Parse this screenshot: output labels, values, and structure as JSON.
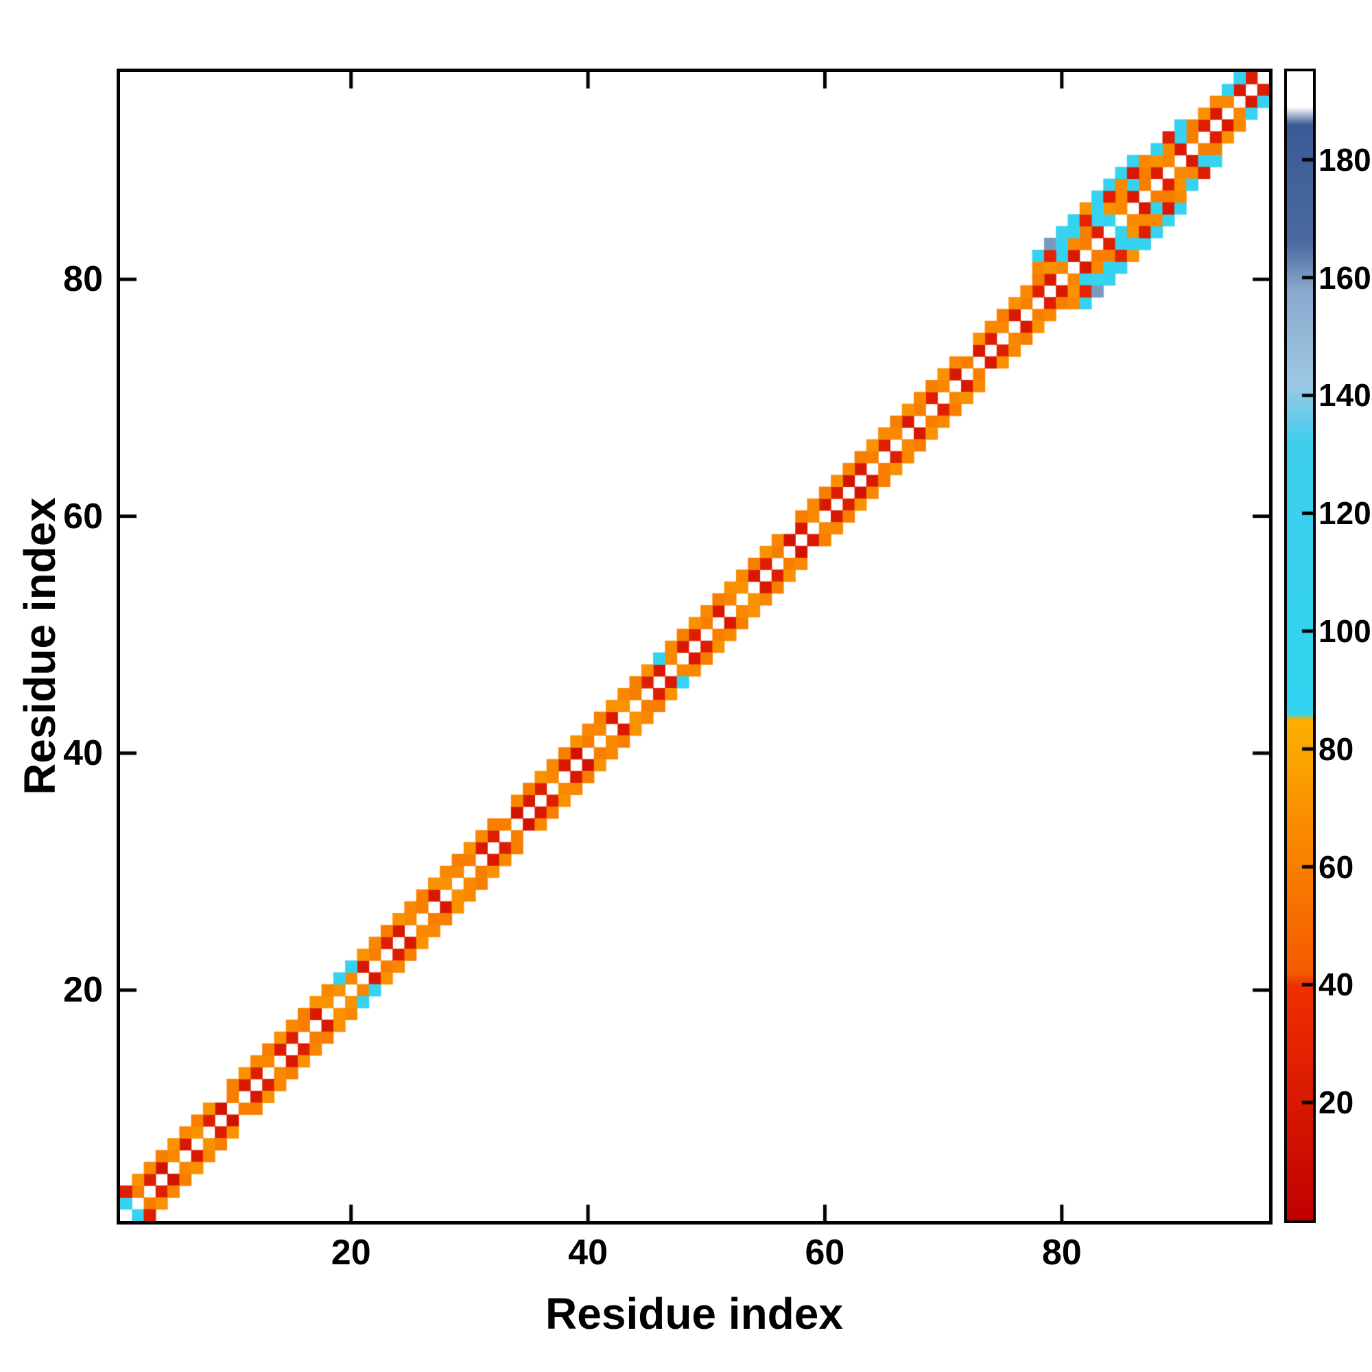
{
  "figure": {
    "background": "#ffffff",
    "axis_color": "#000000"
  },
  "chart_data": {
    "type": "heatmap",
    "title": "",
    "xlabel": "Residue index",
    "ylabel": "Residue index",
    "n_residues": 97,
    "xlim": [
      0.5,
      97.5
    ],
    "ylim": [
      0.5,
      97.5
    ],
    "xticks": [
      20,
      40,
      60,
      80
    ],
    "yticks": [
      20,
      40,
      60,
      80
    ],
    "grid": false,
    "legend": "none",
    "symmetric": true,
    "diagonal_empty": true,
    "colorbar": {
      "min": 0,
      "max": 195,
      "ticks": [
        20,
        40,
        60,
        80,
        100,
        120,
        140,
        160,
        180
      ]
    },
    "colormap_stops": [
      [
        0,
        "#c00000"
      ],
      [
        40,
        "#f03000"
      ],
      [
        42,
        "#f55a00"
      ],
      [
        85,
        "#fcb000"
      ],
      [
        86,
        "#30d5f0"
      ],
      [
        132,
        "#40cdee"
      ],
      [
        142,
        "#9cc8e4"
      ],
      [
        158,
        "#8aa8cc"
      ],
      [
        166,
        "#4a6aa0"
      ],
      [
        186,
        "#3a5a96"
      ],
      [
        189,
        "#ffffff"
      ],
      [
        195,
        "#ffffff"
      ]
    ],
    "cells": {
      "offset1_start_index": 1,
      "offset1_values": [
        100,
        60,
        25,
        15,
        65,
        20,
        70,
        25,
        15,
        60,
        20,
        25,
        65,
        20,
        25,
        60,
        20,
        70,
        70,
        65,
        20,
        60,
        25,
        20,
        65,
        60,
        20,
        70,
        65,
        60,
        20,
        25,
        60,
        15,
        20,
        25,
        65,
        20,
        15,
        60,
        65,
        20,
        70,
        60,
        25,
        20,
        65,
        20,
        25,
        60,
        20,
        65,
        70,
        20,
        25,
        60,
        15,
        20,
        65,
        20,
        25,
        15,
        20,
        60,
        25,
        65,
        20,
        60,
        25,
        65,
        20,
        60,
        20,
        25,
        65,
        20,
        60,
        25,
        20,
        65,
        20,
        60,
        25,
        100,
        65,
        20,
        60,
        25,
        65,
        20,
        60,
        25,
        20,
        65,
        20,
        25
      ],
      "offset2_start_index": 1,
      "offset2_values": [
        25,
        70,
        65,
        60,
        70,
        65,
        60,
        70,
        null,
        60,
        70,
        65,
        60,
        70,
        65,
        60,
        70,
        65,
        100,
        105,
        70,
        65,
        60,
        70,
        65,
        60,
        70,
        65,
        60,
        70,
        65,
        60,
        null,
        65,
        60,
        70,
        65,
        60,
        70,
        65,
        60,
        70,
        65,
        60,
        70,
        100,
        65,
        60,
        70,
        65,
        60,
        70,
        65,
        60,
        70,
        65,
        null,
        60,
        65,
        60,
        70,
        65,
        60,
        70,
        65,
        60,
        70,
        65,
        60,
        70,
        65,
        null,
        70,
        65,
        60,
        70,
        65,
        60,
        70,
        100,
        65,
        60,
        100,
        70,
        65,
        100,
        60,
        70,
        65,
        100,
        60,
        70,
        65,
        100,
        105
      ],
      "extra_cells": [
        [
          78,
          81,
          65
        ],
        [
          78,
          82,
          100
        ],
        [
          79,
          82,
          30
        ],
        [
          79,
          83,
          160
        ],
        [
          80,
          83,
          100
        ],
        [
          80,
          84,
          105
        ],
        [
          81,
          84,
          100
        ],
        [
          81,
          85,
          100
        ],
        [
          82,
          85,
          30
        ],
        [
          82,
          86,
          70
        ],
        [
          83,
          86,
          100
        ],
        [
          83,
          87,
          100
        ],
        [
          84,
          87,
          25
        ],
        [
          84,
          88,
          100
        ],
        [
          85,
          88,
          65
        ],
        [
          85,
          89,
          100
        ],
        [
          86,
          89,
          20
        ],
        [
          86,
          90,
          100
        ],
        [
          87,
          90,
          65
        ],
        [
          88,
          91,
          100
        ],
        [
          89,
          92,
          25
        ],
        [
          90,
          93,
          100
        ]
      ]
    }
  }
}
